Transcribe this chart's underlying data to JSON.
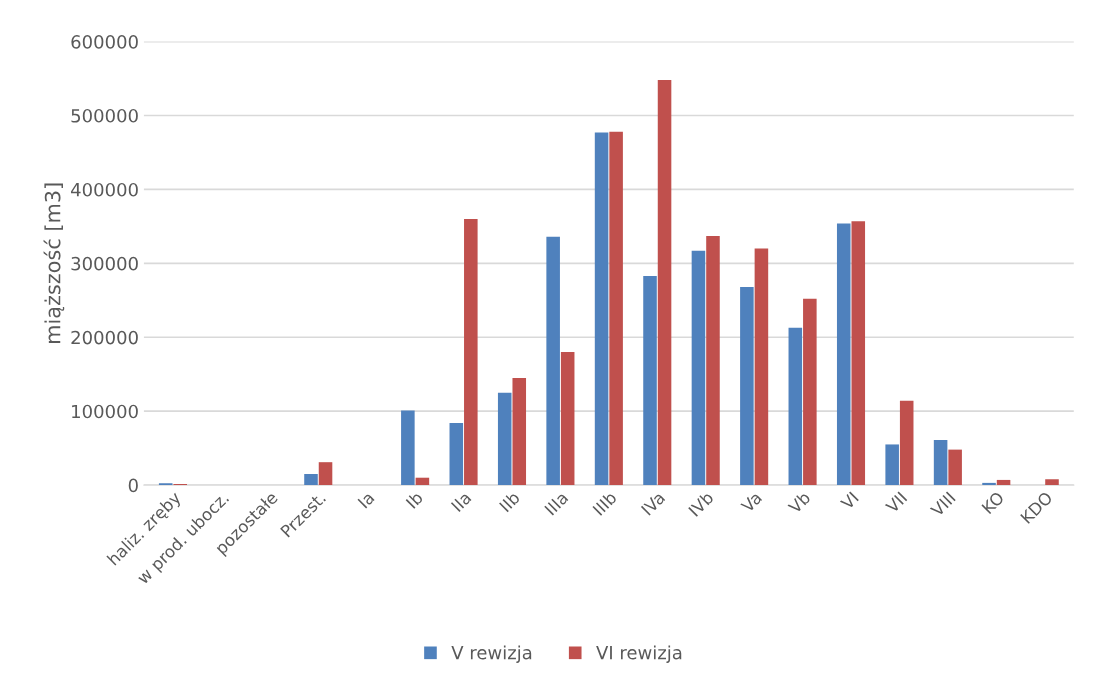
{
  "chart_data": {
    "type": "bar",
    "ylabel": "miąższość [m3]",
    "categories": [
      "haliz. zręby",
      "w prod. ubocz.",
      "pozostałe",
      "Przest.",
      "Ia",
      "Ib",
      "IIa",
      "IIb",
      "IIIa",
      "IIIb",
      "IVa",
      "IVb",
      "Va",
      "Vb",
      "VI",
      "VII",
      "VIII",
      "KO",
      "KDO"
    ],
    "series": [
      {
        "name": "V rewizja",
        "color": "#4f81bd",
        "values": [
          2500,
          0,
          0,
          15000,
          0,
          101000,
          84000,
          125000,
          336000,
          477000,
          283000,
          317000,
          268000,
          213000,
          354000,
          55000,
          61000,
          3000,
          0
        ]
      },
      {
        "name": "VI rewizja",
        "color": "#c0504d",
        "values": [
          1500,
          0,
          0,
          31000,
          0,
          10000,
          360000,
          145000,
          180000,
          478000,
          548000,
          337000,
          320000,
          252000,
          357000,
          114000,
          48000,
          7000,
          8000
        ]
      }
    ],
    "ylim": [
      0,
      600000
    ],
    "yticks": [
      0,
      100000,
      200000,
      300000,
      400000,
      500000,
      600000
    ],
    "grid": "y",
    "legend": "bottom"
  }
}
